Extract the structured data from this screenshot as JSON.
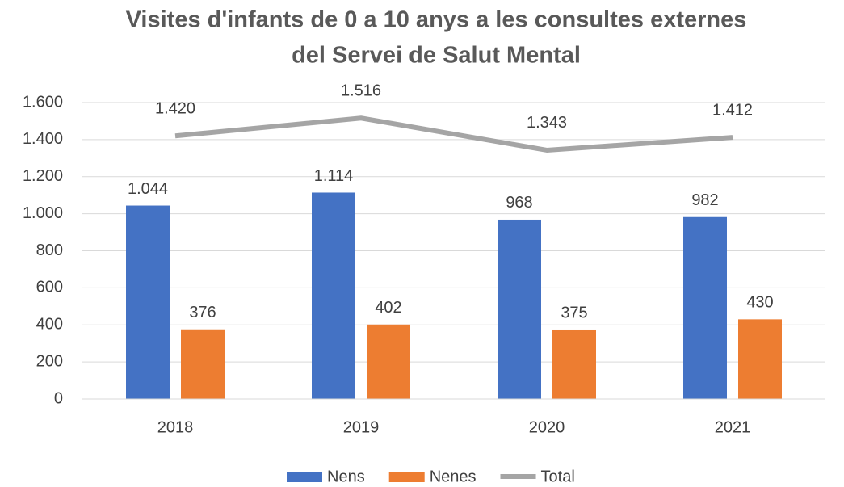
{
  "chart_data": {
    "type": "bar",
    "title": [
      "Visites d'infants de 0 a 10 anys a les consultes externes",
      "del Servei de Salut Mental"
    ],
    "categories": [
      "2018",
      "2019",
      "2020",
      "2021"
    ],
    "series": [
      {
        "name": "Nens",
        "type": "bar",
        "color": "#4472c4",
        "values": [
          1044,
          1114,
          968,
          982
        ],
        "value_labels": [
          "1.044",
          "1.114",
          "968",
          "982"
        ]
      },
      {
        "name": "Nenes",
        "type": "bar",
        "color": "#ed7d31",
        "values": [
          376,
          402,
          375,
          430
        ],
        "value_labels": [
          "376",
          "402",
          "375",
          "430"
        ]
      },
      {
        "name": "Total",
        "type": "line",
        "color": "#a5a5a5",
        "values": [
          1420,
          1516,
          1343,
          1412
        ],
        "value_labels": [
          "1.420",
          "1.516",
          "1.343",
          "1.412"
        ]
      }
    ],
    "ylim": [
      0,
      1600
    ],
    "yticks": [
      0,
      200,
      400,
      600,
      800,
      {
        "value": 1000,
        "label": "1.000"
      },
      {
        "value": 1200,
        "label": "1.200"
      },
      {
        "value": 1400,
        "label": "1.400"
      },
      {
        "value": 1600,
        "label": "1.600"
      }
    ],
    "grid": true,
    "legend": "bottom"
  }
}
